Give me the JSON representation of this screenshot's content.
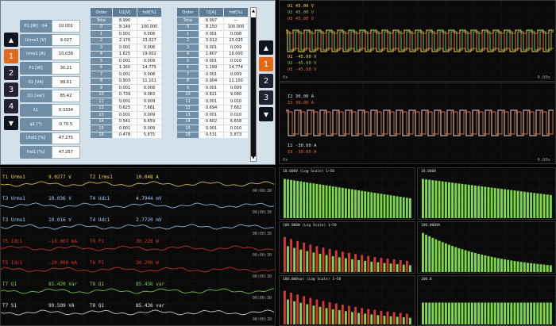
{
  "colors": {
    "u1": "#f0d84a",
    "u2": "#7fc04a",
    "u3": "#e26a2a",
    "green": "#7fd84a",
    "red": "#d83a2a",
    "grid": "#2a2a2a",
    "white": "#e8e8e8",
    "cyan": "#9fd0ff"
  },
  "numeric": {
    "nav": [
      "1",
      "2",
      "3",
      "4"
    ],
    "params": [
      {
        "label": "P1 [W] · U4",
        "value": "10.001"
      },
      {
        "label": "Urms1 [V]",
        "value": "9.027"
      },
      {
        "label": "Irms1 [A]",
        "value": "10.038"
      },
      {
        "label": "P1 [W]",
        "value": "30.21"
      },
      {
        "label": "S1 [VA]",
        "value": "99.61"
      },
      {
        "label": "Q1 [var]",
        "value": "85.42"
      },
      {
        "label": "λ1",
        "value": "0.3334"
      },
      {
        "label": "φ1 [°]",
        "value": "0.70.5"
      },
      {
        "label": "Uhd1 [%]",
        "value": "47.275"
      },
      {
        "label": "Ihd1 [%]",
        "value": "47.257"
      }
    ],
    "table1": {
      "headers": [
        "Order",
        "U1[V]",
        "hdf[%]"
      ],
      "rows": [
        [
          "Total",
          "8.990",
          "—"
        ],
        [
          "0",
          "8.149",
          "100.000"
        ],
        [
          "1",
          "0.001",
          "0.008"
        ],
        [
          "2",
          "2.176",
          "23.027"
        ],
        [
          "3",
          "0.001",
          "0.008"
        ],
        [
          "4",
          "1.625",
          "19.002"
        ],
        [
          "5",
          "0.001",
          "0.009"
        ],
        [
          "6",
          "1.160",
          "14.775"
        ],
        [
          "7",
          "0.001",
          "0.008"
        ],
        [
          "8",
          "0.903",
          "11.101"
        ],
        [
          "9",
          "0.001",
          "0.008"
        ],
        [
          "10",
          "0.739",
          "9.083"
        ],
        [
          "11",
          "0.001",
          "0.009"
        ],
        [
          "12",
          "0.625",
          "7.681"
        ],
        [
          "13",
          "0.001",
          "0.009"
        ],
        [
          "14",
          "0.541",
          "6.659"
        ],
        [
          "15",
          "0.001",
          "0.009"
        ],
        [
          "16",
          "0.478",
          "5.875"
        ]
      ]
    },
    "table2": {
      "headers": [
        "Order",
        "I1[A]",
        "hdf[%]"
      ],
      "rows": [
        [
          "Total",
          "8.997",
          "—"
        ],
        [
          "0",
          "8.150",
          "100.000"
        ],
        [
          "1",
          "0.001",
          "0.008"
        ],
        [
          "2",
          "3.012",
          "23.025"
        ],
        [
          "3",
          "0.001",
          "0.009"
        ],
        [
          "4",
          "1.807",
          "19.000"
        ],
        [
          "5",
          "0.001",
          "0.010"
        ],
        [
          "6",
          "1.199",
          "14.774"
        ],
        [
          "7",
          "0.001",
          "0.009"
        ],
        [
          "8",
          "0.904",
          "11.100"
        ],
        [
          "9",
          "0.001",
          "0.009"
        ],
        [
          "10",
          "0.821",
          "9.080"
        ],
        [
          "11",
          "0.001",
          "0.010"
        ],
        [
          "12",
          "0.694",
          "7.682"
        ],
        [
          "13",
          "0.001",
          "0.010"
        ],
        [
          "14",
          "0.602",
          "6.658"
        ],
        [
          "15",
          "0.001",
          "0.010"
        ],
        [
          "16",
          "0.531",
          "5.873"
        ]
      ]
    },
    "nav_right": [
      "1",
      "2",
      "3"
    ]
  },
  "wave_top": {
    "labels": [
      "U1  45.00 V",
      "U2  45.00 V",
      "U3  45.00 V",
      "U1 -45.00 V",
      "U2 -45.00 V",
      "U3 -45.00 V"
    ],
    "time_left": "0s",
    "time_right": "0.00s"
  },
  "wave_bottom": {
    "labels": [
      "I2  30.00 A",
      "I3  30.00 A",
      "I2 -30.00 A",
      "I3 -30.00 A"
    ],
    "time_left": "0s",
    "time_right": "0.00s"
  },
  "trend": {
    "rows": [
      {
        "l1": "T1  Urms1",
        "v1": "9.0277 V",
        "l2": "T2  Irms1",
        "v2": "10.048 A",
        "c": "u1"
      },
      {
        "l1": "T3  Urms1",
        "v1": "10.036 V",
        "l2": "T4  Udc1",
        "v2": "4.7944 mV",
        "c": "cyan"
      },
      {
        "l1": "T3  Urms1",
        "v1": "10.016 V",
        "l2": "T4  Udc1",
        "v2": "2.7720 mV",
        "c": "cyan"
      },
      {
        "l1": "T5  Idc1",
        "v1": "-16.907 mA",
        "l2": "T6  P1",
        "v2": "30.220 W",
        "c": "red"
      },
      {
        "l1": "T5  Idc1",
        "v1": "-20.000 mA",
        "l2": "T6  P1",
        "v2": "30.200 W",
        "c": "red"
      },
      {
        "l1": "T7  Q1",
        "v1": "85.420 Var",
        "l2": "T8  Q1",
        "v2": "85.436 var",
        "c": "green"
      },
      {
        "l1": "T7  S1",
        "v1": "99.599 VA",
        "l2": "T8  Q1",
        "v2": "85.436 var",
        "c": "white"
      }
    ],
    "time": "00:00:30"
  },
  "bars": {
    "titles": [
      "10.000V      (Log Scale) 1~50",
      "10.000A",
      "100.000W       (Log Scale) 1~50",
      "100.000VA",
      "100.000var      (Log Scale) 1~50",
      "100.0"
    ]
  }
}
